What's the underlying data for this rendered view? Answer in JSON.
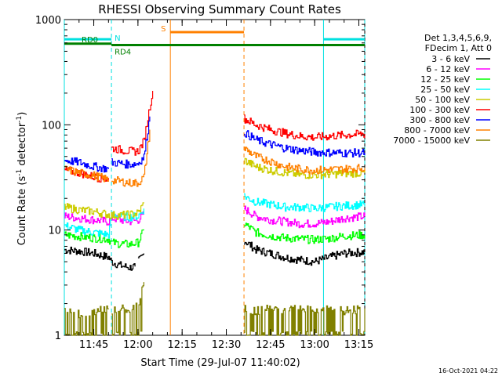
{
  "chart_data": {
    "type": "line",
    "title": "RHESSI Observing Summary Count Rates",
    "xlabel": "Start Time (29-Jul-07 11:40:02)",
    "ylabel_main": "Count Rate (s",
    "ylabel_sup1": "-1",
    "ylabel_mid": " detector",
    "ylabel_sup2": "-1",
    "ylabel_end": ")",
    "yscale": "log",
    "ylim": [
      1,
      1000
    ],
    "xlim_minutes": [
      -5,
      97
    ],
    "x_tick_labels": [
      {
        "label": "11:45",
        "t": 5
      },
      {
        "label": "12:00",
        "t": 20
      },
      {
        "label": "12:15",
        "t": 35
      },
      {
        "label": "12:30",
        "t": 50
      },
      {
        "label": "12:45",
        "t": 65
      },
      {
        "label": "13:00",
        "t": 80
      },
      {
        "label": "13:15",
        "t": 95
      }
    ],
    "y_tick_labels": [
      {
        "label": "1",
        "v": 1
      },
      {
        "label": "10",
        "v": 10
      },
      {
        "label": "100",
        "v": 100
      },
      {
        "label": "1000",
        "v": 1000
      }
    ],
    "legend": {
      "header": [
        "Det 1,3,4,5,6,9,",
        "FDecim 1, Att 0"
      ],
      "entries": [
        {
          "label": "3 - 6 keV",
          "color": "#000000"
        },
        {
          "label": "6 - 12 keV",
          "color": "#ff00ff"
        },
        {
          "label": "12 - 25 keV",
          "color": "#00ff00"
        },
        {
          "label": "25 - 50 keV",
          "color": "#00ffff"
        },
        {
          "label": "50 - 100 keV",
          "color": "#cccc00"
        },
        {
          "label": "100 - 300 keV",
          "color": "#ff0000"
        },
        {
          "label": "300 - 800 keV",
          "color": "#0000ff"
        },
        {
          "label": "800 - 7000 keV",
          "color": "#ff8000"
        },
        {
          "label": "7000 - 15000 keV",
          "color": "#808000"
        }
      ]
    },
    "annotations": {
      "RD0": {
        "label": "RD0",
        "color": "#008000",
        "t_start": -5,
        "t_end": 11,
        "v": 590
      },
      "RD4": {
        "label": "RD4",
        "color": "#008000",
        "t_start": 11,
        "t_end": 97,
        "v": 500
      },
      "N": {
        "label": "N",
        "color": "#00e0e0",
        "t_start": -5,
        "t_end": 11,
        "v": 650
      },
      "N2": {
        "t_start": 83,
        "t_end": 97,
        "v": 650,
        "color": "#00e0e0"
      },
      "S": {
        "label": "S",
        "color": "#ff8000",
        "t_start": 31,
        "t_end": 56,
        "v": 760
      }
    },
    "vlines": [
      {
        "t": -5,
        "color": "#00e0e0",
        "dash": false
      },
      {
        "t": 11,
        "color": "#00e0e0",
        "dash": true
      },
      {
        "t": 31,
        "color": "#ff8000",
        "dash": false
      },
      {
        "t": 56,
        "color": "#ff8000",
        "dash": true
      },
      {
        "t": 83,
        "color": "#00e0e0",
        "dash": false
      },
      {
        "t": 97,
        "color": "#00e0e0",
        "dash": true
      }
    ],
    "series": [
      {
        "name": "3 - 6 keV",
        "color": "#000000",
        "segments": [
          {
            "t": [
              -5,
              0,
              5,
              10,
              11,
              14,
              17,
              19
            ],
            "v": [
              6.5,
              6.3,
              6.0,
              5.5,
              5.0,
              4.6,
              4.4,
              4.5
            ]
          },
          {
            "t": [
              20,
              22
            ],
            "v": [
              5.0,
              6.0
            ]
          },
          {
            "t": [
              56,
              60,
              65,
              70,
              75,
              80,
              85,
              90,
              97
            ],
            "v": [
              8.0,
              6.5,
              6.0,
              5.5,
              5.2,
              5.0,
              5.5,
              6.0,
              6.2
            ]
          }
        ]
      },
      {
        "name": "6 - 12 keV",
        "color": "#ff00ff",
        "segments": [
          {
            "t": [
              -5,
              0,
              5,
              10,
              11,
              14,
              17,
              20,
              22
            ],
            "v": [
              13.5,
              13.0,
              12.5,
              12.0,
              13.0,
              12.5,
              12.0,
              12.5,
              14.0
            ]
          },
          {
            "t": [
              56,
              60,
              65,
              70,
              75,
              80,
              85,
              90,
              97
            ],
            "v": [
              16.0,
              13.5,
              12.5,
              12.0,
              11.5,
              11.5,
              12.0,
              13.0,
              13.5
            ]
          }
        ]
      },
      {
        "name": "12 - 25 keV",
        "color": "#00ff00",
        "segments": [
          {
            "t": [
              -5,
              0,
              5,
              10,
              11,
              14,
              17,
              20,
              22
            ],
            "v": [
              9.0,
              8.7,
              8.4,
              8.2,
              7.6,
              7.4,
              7.3,
              7.6,
              10.0
            ]
          },
          {
            "t": [
              56,
              60,
              65,
              70,
              75,
              80,
              85,
              90,
              97
            ],
            "v": [
              11.5,
              9.5,
              8.8,
              8.4,
              8.2,
              8.1,
              8.3,
              8.8,
              9.0
            ]
          }
        ]
      },
      {
        "name": "25 - 50 keV",
        "color": "#00ffff",
        "segments": [
          {
            "t": [
              -5,
              0,
              5,
              10,
              11,
              14,
              17,
              20,
              22
            ],
            "v": [
              11.0,
              10.0,
              9.5,
              9.0,
              14.0,
              13.5,
              13.3,
              13.5,
              16.0
            ]
          },
          {
            "t": [
              56,
              60,
              65,
              70,
              75,
              80,
              85,
              90,
              97
            ],
            "v": [
              21.0,
              18.5,
              17.5,
              16.5,
              16.5,
              16.0,
              16.5,
              17.0,
              17.5
            ]
          }
        ]
      },
      {
        "name": "50 - 100 keV",
        "color": "#cccc00",
        "segments": [
          {
            "t": [
              -5,
              0,
              5,
              10,
              11,
              14,
              17,
              20,
              22
            ],
            "v": [
              16.5,
              15.5,
              15.0,
              14.0,
              13.8,
              13.8,
              14.0,
              14.5,
              18.0
            ]
          },
          {
            "t": [
              56,
              60,
              65,
              70,
              75,
              80,
              85,
              90,
              97
            ],
            "v": [
              46.0,
              40.0,
              37.0,
              35.0,
              33.5,
              33.5,
              34.0,
              34.5,
              35.0
            ]
          }
        ]
      },
      {
        "name": "100 - 300 keV",
        "color": "#ff0000",
        "segments": [
          {
            "t": [
              -5,
              0,
              5,
              10
            ],
            "v": [
              37.0,
              35.0,
              32.0,
              30.0
            ]
          },
          {
            "t": [
              11,
              14,
              17,
              20,
              22,
              24,
              25
            ],
            "v": [
              60.0,
              58.0,
              56.0,
              56.0,
              70.0,
              150.0,
              210.0
            ]
          },
          {
            "t": [
              56,
              60,
              65,
              70,
              75,
              80,
              85,
              90,
              97
            ],
            "v": [
              115.0,
              100.0,
              90.0,
              83.0,
              78.0,
              76.0,
              78.0,
              80.0,
              82.0
            ]
          }
        ]
      },
      {
        "name": "300 - 800 keV",
        "color": "#0000ff",
        "segments": [
          {
            "t": [
              -5,
              0,
              5,
              10
            ],
            "v": [
              46.0,
              44.0,
              40.0,
              38.0
            ]
          },
          {
            "t": [
              11,
              14,
              17,
              20,
              22,
              24
            ],
            "v": [
              44.0,
              43.0,
              42.0,
              43.0,
              50.0,
              120.0
            ]
          },
          {
            "t": [
              56,
              60,
              65,
              70,
              75,
              80,
              85,
              90,
              97
            ],
            "v": [
              85.0,
              72.0,
              65.0,
              60.0,
              57.0,
              55.0,
              54.5,
              54.0,
              54.0
            ]
          }
        ]
      },
      {
        "name": "800 - 7000 keV",
        "color": "#ff8000",
        "segments": [
          {
            "t": [
              -5,
              0,
              5,
              10
            ],
            "v": [
              38.0,
              35.0,
              33.0,
              30.0
            ]
          },
          {
            "t": [
              11,
              14,
              17,
              20,
              22,
              24
            ],
            "v": [
              30.0,
              29.0,
              28.0,
              28.0,
              32.0,
              90.0
            ]
          },
          {
            "t": [
              56,
              60,
              65,
              70,
              75,
              80,
              85,
              90,
              97
            ],
            "v": [
              60.0,
              50.0,
              45.0,
              40.0,
              38.0,
              37.0,
              37.5,
              38.0,
              39.0
            ]
          }
        ]
      },
      {
        "name": "7000 - 15000 keV",
        "color": "#808000",
        "segments": [
          {
            "t": [
              -5,
              0,
              5,
              10
            ],
            "v": [
              1.8,
              1.6,
              1.7,
              1.8
            ]
          },
          {
            "t": [
              11,
              14,
              17,
              20,
              21,
              22
            ],
            "v": [
              1.7,
              1.8,
              1.7,
              2.0,
              2.4,
              3.2
            ]
          },
          {
            "t": [
              56,
              60,
              65,
              70,
              75,
              80,
              85,
              90,
              97
            ],
            "v": [
              1.8,
              1.7,
              1.8,
              1.7,
              1.8,
              1.7,
              1.8,
              1.7,
              1.8
            ]
          }
        ]
      }
    ]
  },
  "footer": {
    "timestamp": "16-Oct-2021 04:22"
  }
}
